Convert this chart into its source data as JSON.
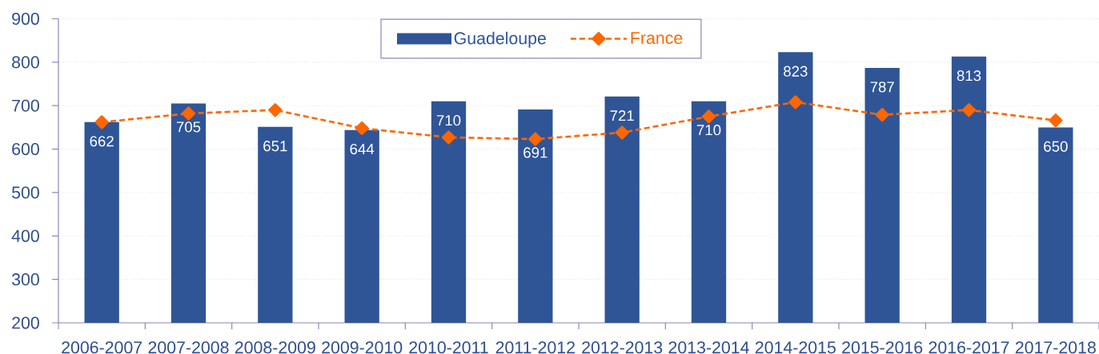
{
  "chart_data": {
    "type": "bar",
    "categories": [
      "2006-2007",
      "2007-2008",
      "2008-2009",
      "2009-2010",
      "2010-2011",
      "2011-2012",
      "2012-2013",
      "2013-2014",
      "2014-2015",
      "2015-2016",
      "2016-2017",
      "2017-2018"
    ],
    "series": [
      {
        "name": "Guadeloupe",
        "color": "#2f5597",
        "values": [
          662,
          705,
          651,
          644,
          710,
          691,
          721,
          710,
          823,
          787,
          813,
          650
        ],
        "value_labels": [
          "662",
          "705",
          "651",
          "644",
          "710",
          "691",
          "721",
          "710",
          "823",
          "787",
          "813",
          "650"
        ]
      },
      {
        "name": "France",
        "type": "line",
        "color": "#ff6600",
        "values": [
          662,
          682,
          690,
          648,
          627,
          623,
          638,
          675,
          708,
          679,
          690,
          666
        ],
        "marker": "diamond",
        "line_style": "dashed"
      }
    ],
    "ylim": [
      200,
      900
    ],
    "yticks": [
      200,
      300,
      400,
      500,
      600,
      700,
      800,
      900
    ],
    "grid": "y",
    "legend": "top"
  }
}
